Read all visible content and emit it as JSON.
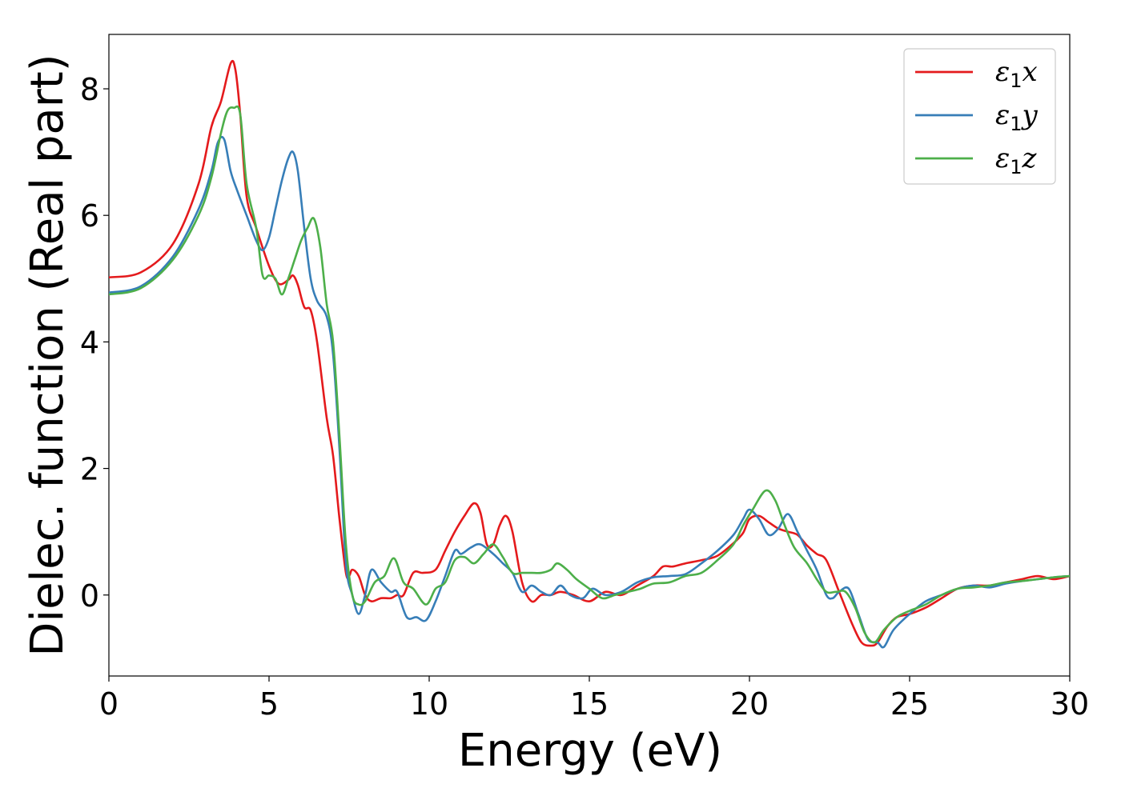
{
  "chart_data": {
    "type": "line",
    "title": "",
    "xlabel": "Energy (eV)",
    "ylabel": "Dielec. function (Real part)",
    "xlim": [
      0,
      30
    ],
    "ylim": [
      -1.28,
      8.86
    ],
    "xticks": [
      0,
      5,
      10,
      15,
      20,
      25,
      30
    ],
    "yticks": [
      0,
      2,
      4,
      6,
      8
    ],
    "xtick_labels": [
      "0",
      "5",
      "10",
      "15",
      "20",
      "25",
      "30"
    ],
    "ytick_labels": [
      "0",
      "2",
      "4",
      "6",
      "8"
    ],
    "grid": false,
    "legend_position": "top-right",
    "series": [
      {
        "name": "ε1x",
        "symbol": "ε",
        "subscript": "1",
        "suffix": "x",
        "color": "#e41a1c",
        "x": [
          0,
          1,
          2,
          2.8,
          3.2,
          3.5,
          3.8,
          3.95,
          4.1,
          4.3,
          4.6,
          5.0,
          5.3,
          5.6,
          5.75,
          5.9,
          6.1,
          6.3,
          6.5,
          6.8,
          7.0,
          7.2,
          7.4,
          7.5,
          7.6,
          7.8,
          8.0,
          8.2,
          8.5,
          8.8,
          9.0,
          9.2,
          9.5,
          9.8,
          10.2,
          10.5,
          10.8,
          11.1,
          11.4,
          11.6,
          11.8,
          12.0,
          12.2,
          12.4,
          12.6,
          12.9,
          13.2,
          13.5,
          13.8,
          14.1,
          14.5,
          15.0,
          15.5,
          16.0,
          16.5,
          17.0,
          17.3,
          17.6,
          18.0,
          18.5,
          19.0,
          19.5,
          19.8,
          20.0,
          20.3,
          20.6,
          20.9,
          21.2,
          21.5,
          21.8,
          22.1,
          22.4,
          22.8,
          23.2,
          23.5,
          23.8,
          24.0,
          24.3,
          24.6,
          25.0,
          25.5,
          26.0,
          26.5,
          27.0,
          27.5,
          28.0,
          28.5,
          29.0,
          29.5,
          30.0
        ],
        "y": [
          5.02,
          5.1,
          5.55,
          6.5,
          7.4,
          7.8,
          8.4,
          8.3,
          7.6,
          6.3,
          5.8,
          5.2,
          4.92,
          4.98,
          5.05,
          4.9,
          4.55,
          4.5,
          4.0,
          2.8,
          2.2,
          1.2,
          0.35,
          0.3,
          0.4,
          0.3,
          0.0,
          -0.1,
          -0.05,
          -0.05,
          0.0,
          0.0,
          0.35,
          0.35,
          0.4,
          0.7,
          1.0,
          1.25,
          1.45,
          1.3,
          0.8,
          0.8,
          1.1,
          1.25,
          1.0,
          0.2,
          -0.1,
          0.0,
          0.0,
          0.05,
          0.0,
          -0.1,
          0.05,
          0.0,
          0.15,
          0.3,
          0.45,
          0.45,
          0.5,
          0.55,
          0.62,
          0.82,
          0.98,
          1.2,
          1.25,
          1.15,
          1.05,
          1.0,
          0.95,
          0.78,
          0.65,
          0.55,
          0.05,
          -0.45,
          -0.75,
          -0.8,
          -0.75,
          -0.5,
          -0.35,
          -0.3,
          -0.2,
          -0.05,
          0.1,
          0.15,
          0.15,
          0.2,
          0.25,
          0.3,
          0.25,
          0.3
        ]
      },
      {
        "name": "ε1y",
        "symbol": "ε",
        "subscript": "1",
        "suffix": "y",
        "color": "#377eb8",
        "x": [
          0,
          1,
          2,
          2.8,
          3.2,
          3.4,
          3.6,
          3.8,
          4.0,
          4.3,
          4.6,
          4.8,
          5.0,
          5.2,
          5.4,
          5.6,
          5.75,
          5.9,
          6.1,
          6.3,
          6.5,
          6.8,
          7.0,
          7.2,
          7.4,
          7.6,
          7.8,
          8.0,
          8.2,
          8.5,
          8.8,
          9.0,
          9.3,
          9.6,
          9.9,
          10.2,
          10.5,
          10.8,
          11.0,
          11.3,
          11.6,
          12.0,
          12.3,
          12.6,
          12.9,
          13.2,
          13.5,
          13.8,
          14.1,
          14.4,
          14.8,
          15.1,
          15.5,
          16.0,
          16.5,
          17.0,
          17.5,
          18.0,
          18.5,
          19.0,
          19.5,
          19.8,
          20.0,
          20.3,
          20.6,
          20.9,
          21.2,
          21.5,
          21.8,
          22.1,
          22.4,
          22.6,
          22.8,
          23.1,
          23.4,
          23.7,
          24.0,
          24.2,
          24.5,
          25.0,
          25.5,
          26.0,
          26.5,
          27.0,
          27.5,
          28.0,
          28.5,
          29.0,
          29.5,
          30.0
        ],
        "y": [
          4.78,
          4.88,
          5.35,
          6.1,
          6.7,
          7.15,
          7.2,
          6.7,
          6.4,
          6.0,
          5.6,
          5.45,
          5.65,
          6.1,
          6.55,
          6.9,
          7.0,
          6.7,
          5.8,
          5.0,
          4.65,
          4.4,
          3.8,
          2.3,
          0.5,
          0.0,
          -0.3,
          0.0,
          0.4,
          0.2,
          0.05,
          0.05,
          -0.35,
          -0.35,
          -0.4,
          -0.1,
          0.3,
          0.7,
          0.65,
          0.75,
          0.8,
          0.65,
          0.5,
          0.35,
          0.05,
          0.15,
          0.05,
          0.0,
          0.15,
          0.0,
          -0.05,
          0.1,
          0.0,
          0.05,
          0.2,
          0.28,
          0.3,
          0.33,
          0.5,
          0.7,
          0.95,
          1.2,
          1.35,
          1.2,
          0.95,
          1.05,
          1.28,
          1.0,
          0.7,
          0.4,
          0.0,
          -0.05,
          0.05,
          0.1,
          -0.3,
          -0.7,
          -0.75,
          -0.82,
          -0.55,
          -0.3,
          -0.1,
          0.0,
          0.1,
          0.15,
          0.12,
          0.18,
          0.22,
          0.25,
          0.28,
          0.3
        ]
      },
      {
        "name": "ε1z",
        "symbol": "ε",
        "subscript": "1",
        "suffix": "z",
        "color": "#4daf4a",
        "x": [
          0,
          1,
          2,
          2.8,
          3.2,
          3.5,
          3.7,
          3.9,
          4.1,
          4.3,
          4.6,
          4.8,
          5.0,
          5.2,
          5.4,
          5.6,
          5.8,
          6.0,
          6.2,
          6.4,
          6.6,
          6.8,
          7.0,
          7.2,
          7.4,
          7.6,
          7.8,
          8.0,
          8.3,
          8.6,
          8.9,
          9.2,
          9.5,
          9.9,
          10.2,
          10.5,
          10.8,
          11.1,
          11.4,
          11.7,
          12.0,
          12.3,
          12.6,
          12.9,
          13.2,
          13.5,
          13.8,
          14.0,
          14.3,
          14.6,
          15.0,
          15.4,
          15.8,
          16.2,
          16.6,
          17.0,
          17.5,
          18.0,
          18.5,
          19.0,
          19.5,
          19.8,
          20.1,
          20.5,
          20.8,
          21.1,
          21.4,
          21.8,
          22.1,
          22.4,
          22.7,
          23.0,
          23.3,
          23.6,
          23.9,
          24.2,
          24.6,
          25.0,
          25.5,
          26.0,
          26.5,
          27.0,
          27.5,
          28.0,
          28.5,
          29.0,
          29.5,
          30.0
        ],
        "y": [
          4.75,
          4.85,
          5.3,
          6.0,
          6.6,
          7.3,
          7.65,
          7.7,
          7.6,
          6.5,
          5.8,
          5.05,
          5.05,
          5.0,
          4.75,
          5.0,
          5.3,
          5.6,
          5.8,
          5.95,
          5.5,
          4.6,
          4.0,
          2.5,
          0.8,
          0.0,
          -0.15,
          -0.1,
          0.2,
          0.3,
          0.58,
          0.2,
          0.1,
          -0.15,
          0.1,
          0.2,
          0.55,
          0.6,
          0.5,
          0.65,
          0.8,
          0.6,
          0.35,
          0.35,
          0.35,
          0.35,
          0.4,
          0.5,
          0.4,
          0.25,
          0.1,
          -0.05,
          0.0,
          0.05,
          0.1,
          0.18,
          0.2,
          0.3,
          0.35,
          0.55,
          0.8,
          1.1,
          1.35,
          1.65,
          1.5,
          1.1,
          0.75,
          0.5,
          0.25,
          0.05,
          0.05,
          0.05,
          -0.2,
          -0.6,
          -0.75,
          -0.55,
          -0.35,
          -0.25,
          -0.15,
          0.0,
          0.1,
          0.12,
          0.15,
          0.2,
          0.22,
          0.25,
          0.28,
          0.3
        ]
      }
    ]
  }
}
